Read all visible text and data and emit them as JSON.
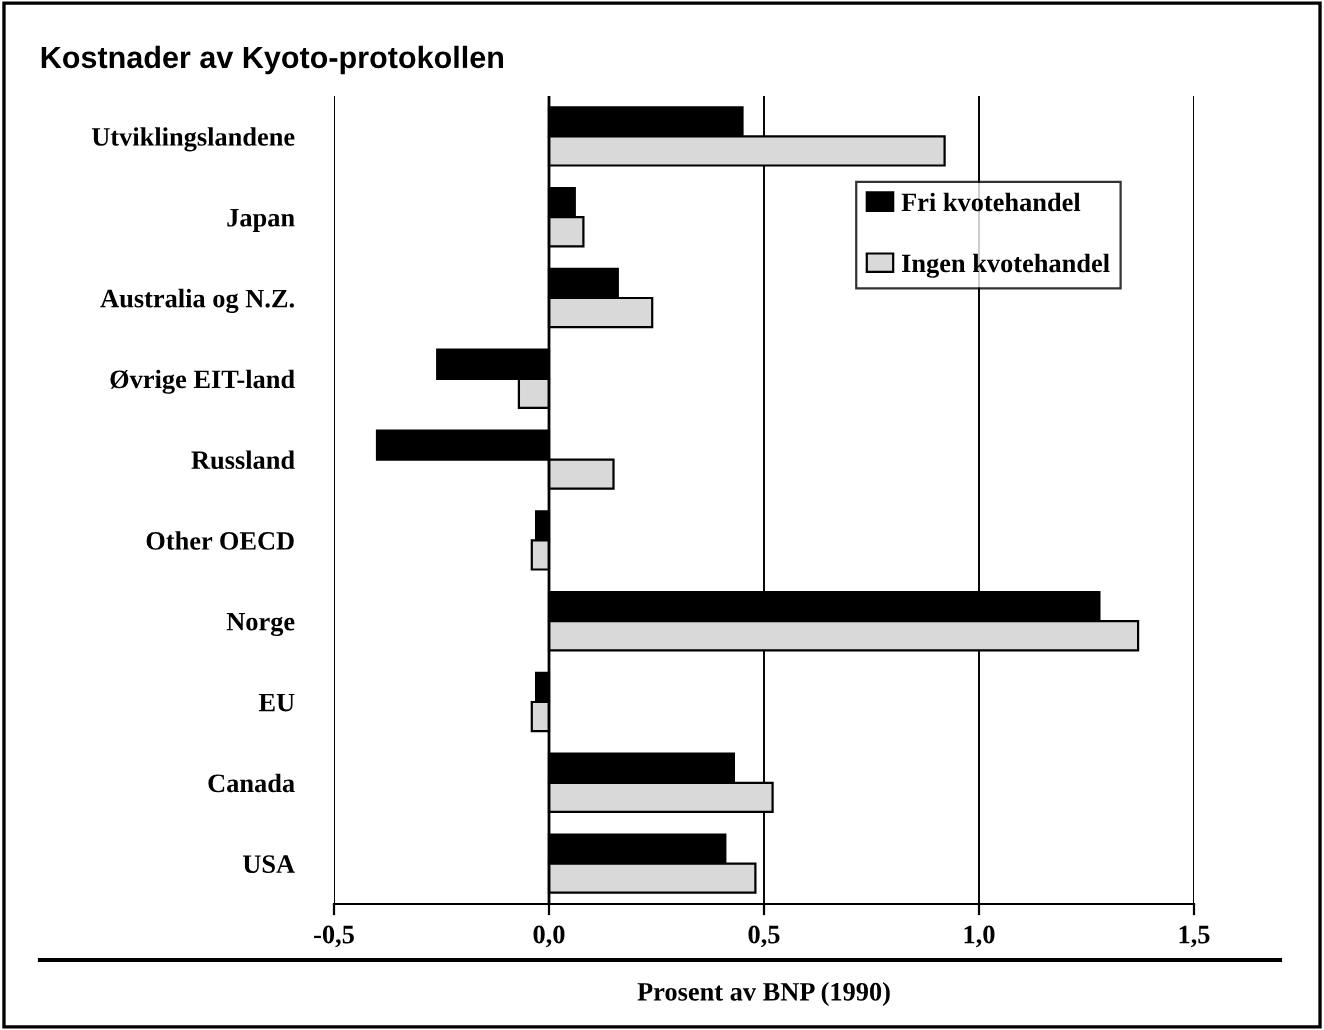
{
  "chart_data": {
    "type": "bar",
    "orientation": "horizontal",
    "title": "Kostnader av Kyoto-protokollen",
    "xlabel": "Prosent av BNP (1990)",
    "categories": [
      "Utviklingslandene",
      "Japan",
      "Australia og N.Z.",
      "Øvrige EIT-land",
      "Russland",
      "Other OECD",
      "Norge",
      "EU",
      "Canada",
      "USA"
    ],
    "series": [
      {
        "name": "Fri kvotehandel",
        "color": "#000000",
        "values": [
          0.45,
          0.06,
          0.16,
          -0.26,
          -0.4,
          -0.03,
          1.28,
          -0.03,
          0.43,
          0.41
        ]
      },
      {
        "name": "Ingen kvotehandel",
        "color": "#d9d9d9",
        "values": [
          0.92,
          0.08,
          0.24,
          -0.07,
          0.15,
          -0.04,
          1.37,
          -0.04,
          0.52,
          0.48
        ]
      }
    ],
    "xlim": [
      -0.5,
      1.5
    ],
    "xticks": [
      {
        "value": -0.5,
        "label": "-0,5"
      },
      {
        "value": 0,
        "label": "0,0"
      },
      {
        "value": 0.5,
        "label": "0,5"
      },
      {
        "value": 1.0,
        "label": "1,0"
      },
      {
        "value": 1.5,
        "label": "1,5"
      }
    ],
    "ref_lines": [
      {
        "axis": "x",
        "value": 0,
        "color": "#000000"
      }
    ],
    "grid": "x",
    "legend": "top right"
  }
}
